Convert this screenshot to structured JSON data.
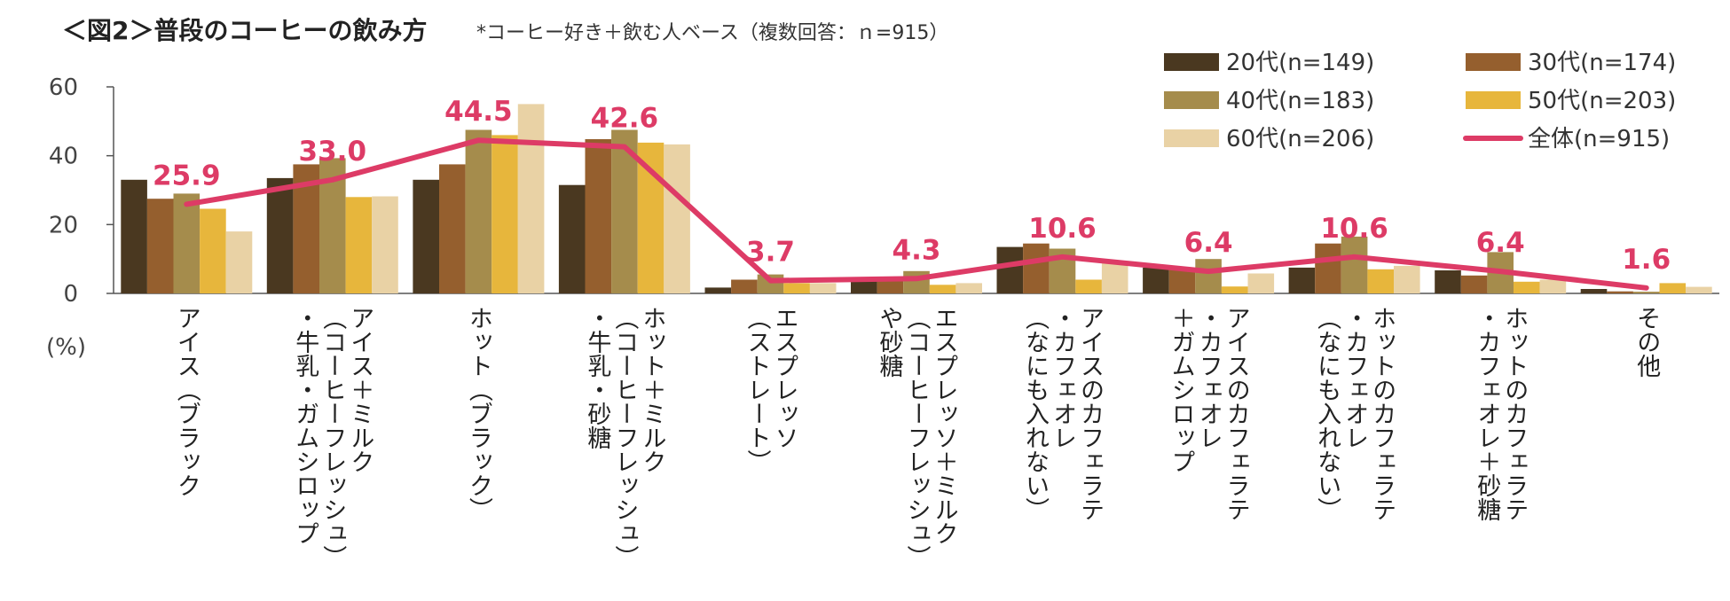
{
  "chart_data": {
    "type": "bar",
    "title": "＜図2＞普段のコーヒーの飲み方",
    "subtitle": "*コーヒー好き＋飲む人ベース（複数回答：ｎ=915）",
    "ylabel": "(%)",
    "ylim": [
      0,
      60
    ],
    "yticks": [
      "0",
      "20",
      "40",
      "60"
    ],
    "legend_position": "top-right",
    "categories": [
      [
        "アイス（ブラック"
      ],
      [
        "アイス＋ミルク",
        "（コーヒーフレッシュ）",
        "・牛乳・ガムシロップ"
      ],
      [
        "ホット（ブラック）"
      ],
      [
        "ホット＋ミルク",
        "（コーヒーフレッシュ）",
        "・牛乳・砂糖"
      ],
      [
        "エスプレッソ",
        "（ストレート）"
      ],
      [
        "エスプレッソ＋ミルク",
        "（コーヒーフレッシュ）",
        "や砂糖"
      ],
      [
        "アイスのカフェラテ",
        "・カフェオレ",
        "（なにも入れない）"
      ],
      [
        "アイスのカフェラテ",
        "・カフェオレ",
        "＋ガムシロップ"
      ],
      [
        "ホットのカフェラテ",
        "・カフェオレ",
        "（なにも入れない）"
      ],
      [
        "ホットのカフェラテ",
        "・カフェオレ＋砂糖"
      ],
      [
        "その他"
      ]
    ],
    "series": [
      {
        "name": "20代(n=149)",
        "color": "#4a3820",
        "values": [
          33.0,
          33.5,
          33.0,
          31.5,
          1.7,
          3.5,
          13.5,
          7.5,
          7.5,
          6.7,
          1.3
        ]
      },
      {
        "name": "30代(n=174)",
        "color": "#955f2e",
        "values": [
          27.5,
          37.5,
          37.5,
          44.8,
          4.0,
          3.5,
          14.5,
          7.0,
          14.5,
          5.2,
          0.6
        ]
      },
      {
        "name": "40代(n=183)",
        "color": "#a58c4c",
        "values": [
          29.0,
          39.3,
          47.5,
          47.5,
          5.5,
          6.5,
          13.0,
          10.0,
          16.5,
          12.0,
          0.5
        ]
      },
      {
        "name": "50代(n=203)",
        "color": "#e7b63c",
        "values": [
          24.6,
          28.0,
          46.0,
          43.8,
          3.0,
          2.5,
          4.0,
          2.0,
          7.0,
          3.4,
          3.0
        ]
      },
      {
        "name": "60代(n=206)",
        "color": "#e9d2a5",
        "values": [
          18.0,
          28.2,
          55.0,
          43.3,
          3.0,
          3.0,
          9.0,
          5.8,
          8.0,
          4.0,
          1.9
        ]
      }
    ],
    "line": {
      "name": "全体(n=915)",
      "color": "#dd3b66",
      "values": [
        25.9,
        33.0,
        44.5,
        42.6,
        3.7,
        4.3,
        10.6,
        6.4,
        10.6,
        6.4,
        1.6
      ],
      "labels": [
        "25.9",
        "33.0",
        "44.5",
        "42.6",
        "3.7",
        "4.3",
        "10.6",
        "6.4",
        "10.6",
        "6.4",
        "1.6"
      ]
    }
  }
}
